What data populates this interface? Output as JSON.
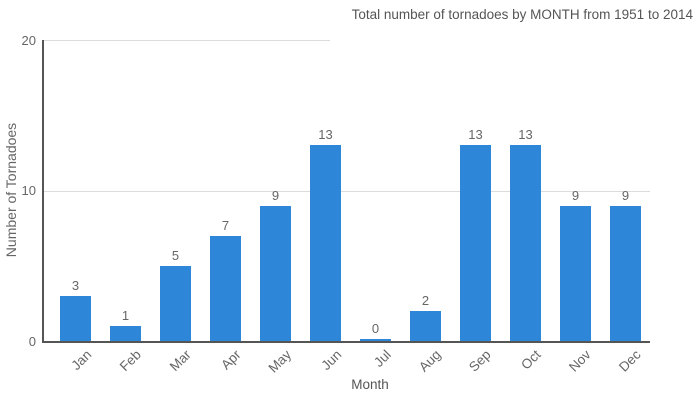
{
  "chart_data": {
    "type": "bar",
    "title": "Total number of tornadoes by MONTH from 1951 to 2014",
    "xlabel": "Month",
    "ylabel": "Number of Tornadoes",
    "categories": [
      "Jan",
      "Feb",
      "Mar",
      "Apr",
      "May",
      "Jun",
      "Jul",
      "Aug",
      "Sep",
      "Oct",
      "Nov",
      "Dec"
    ],
    "values": [
      3,
      1,
      5,
      7,
      9,
      13,
      0,
      2,
      13,
      13,
      9,
      9
    ],
    "ylim": [
      0,
      20
    ],
    "yticks": [
      0,
      10,
      20
    ],
    "grid": "horizontal",
    "legend": "none",
    "value_labels_shown": true,
    "colors": {
      "bar": "#2e86d8",
      "gridline": "#dcdcdc",
      "axis_line": "#555555",
      "tick_text": "#666666",
      "title_text": "#555555"
    }
  }
}
